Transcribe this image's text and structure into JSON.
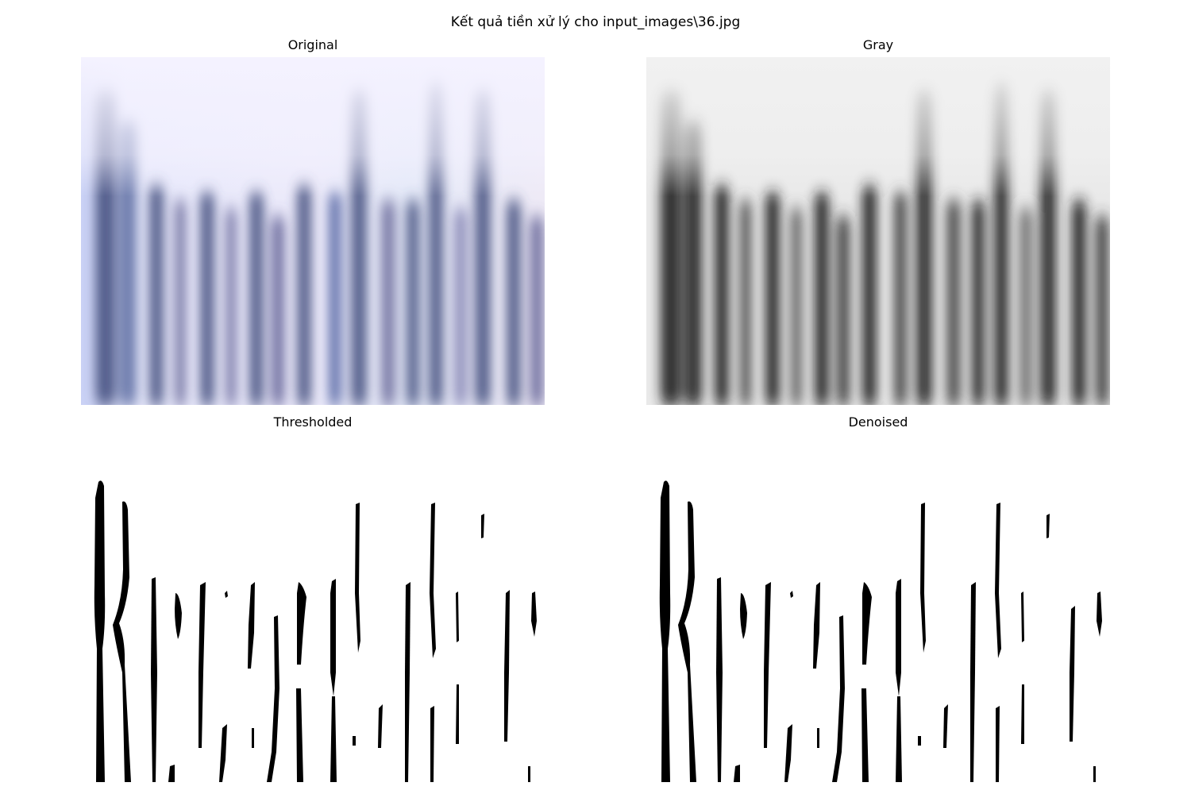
{
  "figure": {
    "title": "Kết quả tiền xử lý cho input_images\\36.jpg"
  },
  "panels": [
    {
      "id": "original",
      "title": "Original"
    },
    {
      "id": "gray",
      "title": "Gray"
    },
    {
      "id": "thresholded",
      "title": "Thresholded"
    },
    {
      "id": "denoised",
      "title": "Denoised"
    }
  ],
  "colors": {
    "background": "#ffffff",
    "original_tint": "#f2efff",
    "original_stroke": "#4a5a8a",
    "gray_bg": "#f1f1f1",
    "gray_stroke": "#2a2a2a",
    "binary_fg": "#000000"
  }
}
